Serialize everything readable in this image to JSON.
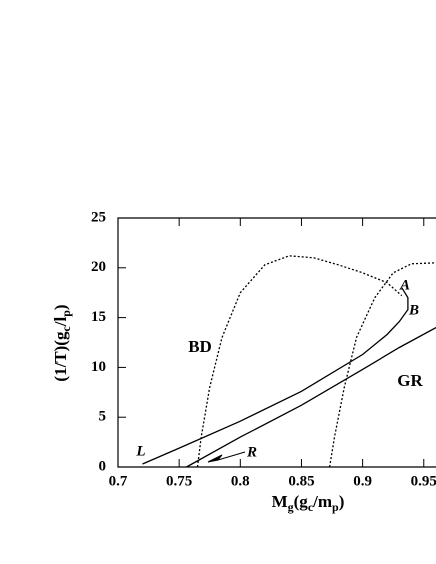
{
  "chart_data": {
    "type": "line",
    "x_label": [
      {
        "text": "M"
      },
      {
        "text": "g",
        "sub": true
      },
      {
        "text": "(g"
      },
      {
        "text": "c",
        "sub": true
      },
      {
        "text": "/m"
      },
      {
        "text": "p",
        "sub": true
      },
      {
        "text": ")"
      }
    ],
    "y_label": [
      {
        "text": "(1/T)(g"
      },
      {
        "text": "c",
        "sub": true
      },
      {
        "text": "/l"
      },
      {
        "text": "p",
        "sub": true
      },
      {
        "text": ")"
      }
    ],
    "xlim": [
      0.7,
      0.96
    ],
    "xticks": [
      0.7,
      0.75,
      0.8,
      0.85,
      0.9,
      0.95
    ],
    "ylim": [
      0,
      25
    ],
    "yticks": [
      0,
      5,
      10,
      15,
      20,
      25
    ],
    "series": [
      {
        "style": "solid",
        "color": "#000",
        "x": [
          0.72,
          0.75,
          0.8,
          0.85,
          0.9,
          0.92,
          0.93,
          0.937,
          0.937,
          0.932
        ],
        "values": [
          0.3,
          1.9,
          4.6,
          7.6,
          11.3,
          13.3,
          14.6,
          15.8,
          17.0,
          18.0
        ]
      },
      {
        "style": "solid",
        "color": "#000",
        "x": [
          0.756,
          0.8,
          0.85,
          0.9,
          0.93,
          0.96
        ],
        "values": [
          0,
          3,
          6.2,
          9.8,
          12,
          14
        ]
      },
      {
        "style": "dotted",
        "color": "#000",
        "x": [
          0.765,
          0.768,
          0.775,
          0.785,
          0.8,
          0.82,
          0.84,
          0.86,
          0.88,
          0.9,
          0.92,
          0.932
        ],
        "values": [
          0,
          3,
          8,
          13,
          17.5,
          20.3,
          21.2,
          21,
          20.3,
          19.5,
          18.5,
          17.2
        ]
      },
      {
        "style": "dotted",
        "color": "#000",
        "x": [
          0.873,
          0.877,
          0.885,
          0.895,
          0.91,
          0.925,
          0.94,
          0.96
        ],
        "values": [
          0,
          3,
          8,
          13,
          17,
          19.5,
          20.4,
          20.5
        ]
      }
    ],
    "annotations": [
      "A",
      "B",
      "L",
      "R",
      "BD",
      "GR"
    ]
  }
}
